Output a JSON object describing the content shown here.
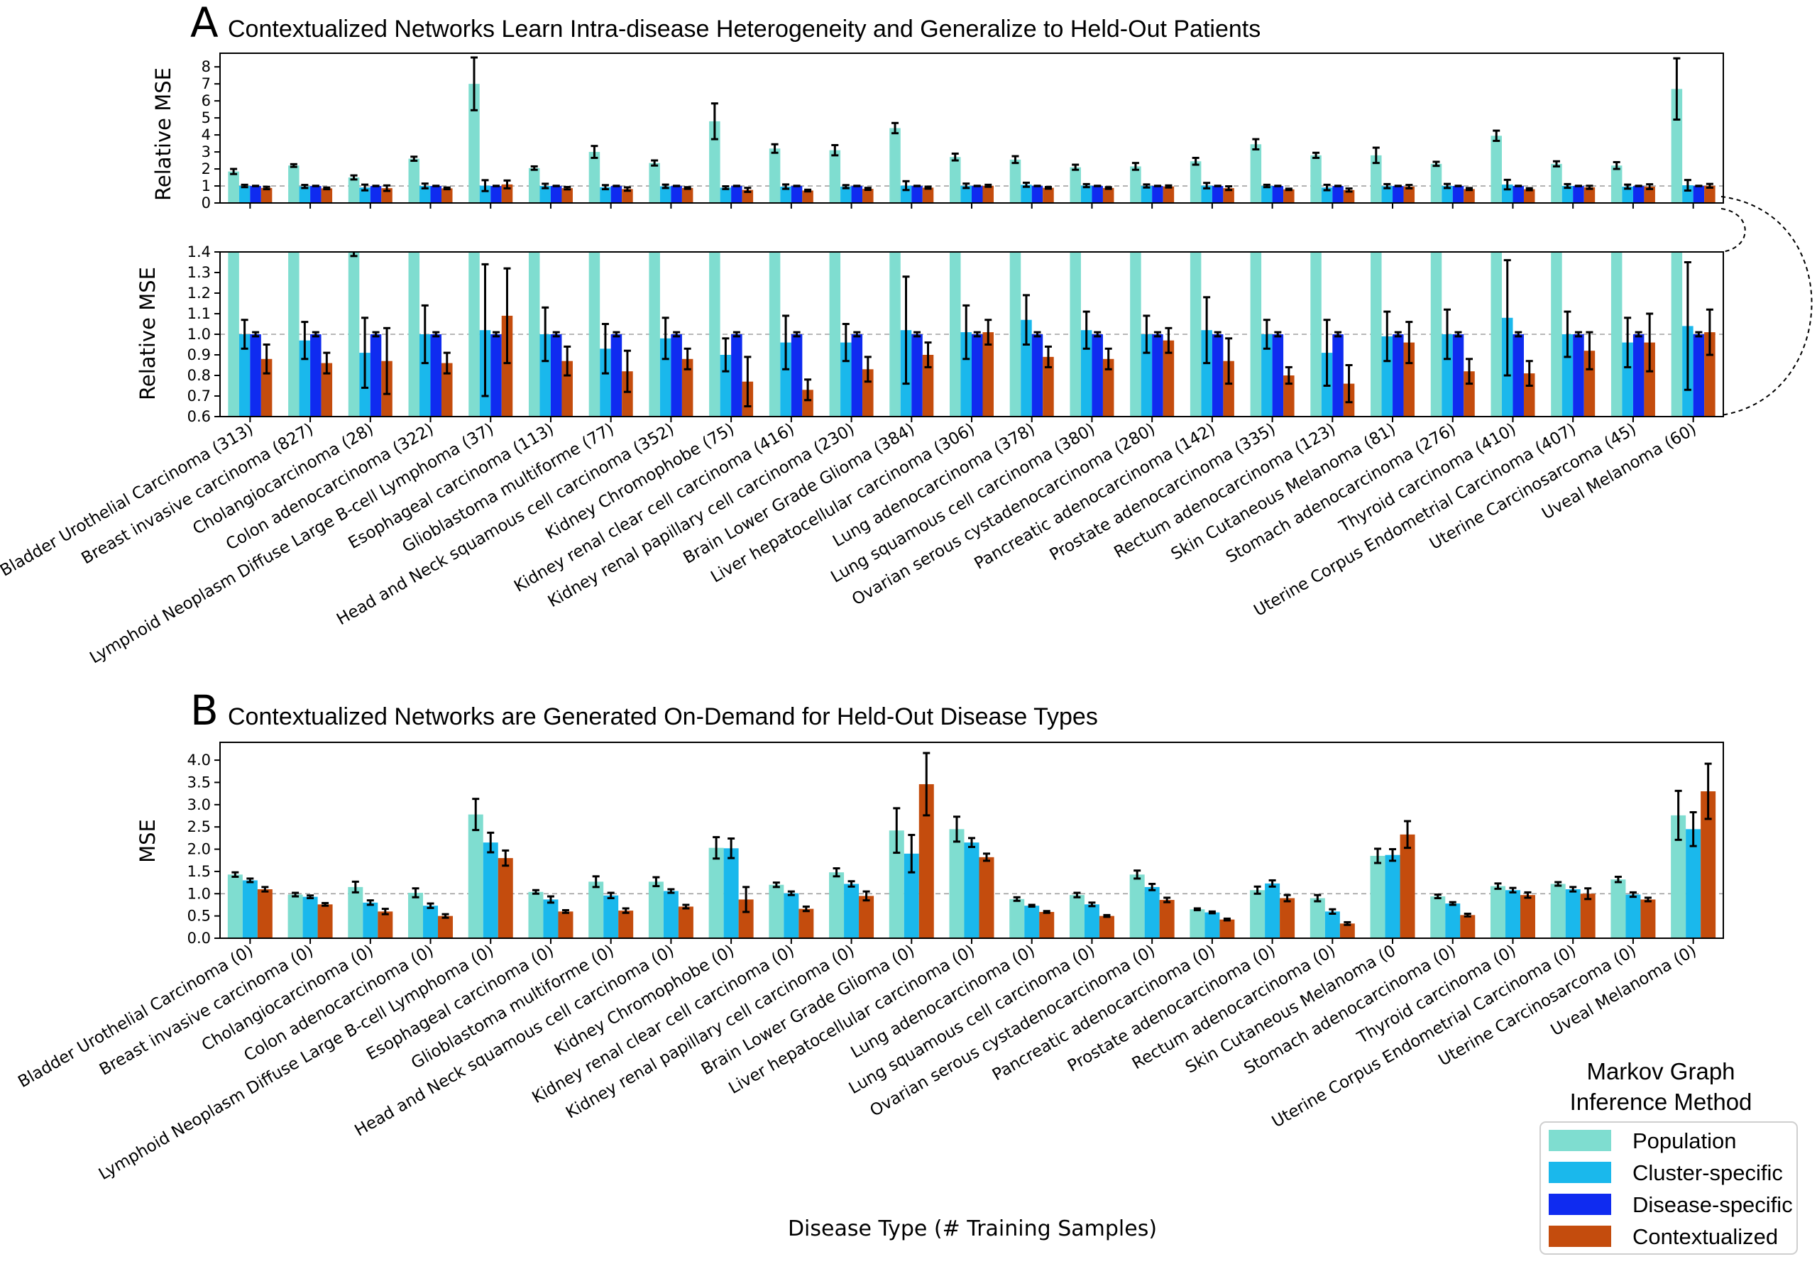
{
  "colors": {
    "Population": "#7fddd0",
    "Cluster-specific": "#1ab8ec",
    "Disease-specific": "#0f2bf0",
    "Contextualized": "#c44c0d"
  },
  "panelA": {
    "letter": "A",
    "title": "Contextualized Networks Learn Intra-disease Heterogeneity and Generalize to Held-Out Patients"
  },
  "panelB": {
    "letter": "B",
    "title": "Contextualized Networks are Generated On-Demand for Held-Out Disease Types"
  },
  "xlabel": "Disease Type (# Training Samples)",
  "legend": {
    "title_line1": "Markov Graph",
    "title_line2": "Inference Method",
    "entries": [
      "Population",
      "Cluster-specific",
      "Disease-specific",
      "Contextualized"
    ]
  },
  "chart_data": [
    {
      "id": "A-top",
      "type": "bar",
      "title": "Contextualized Networks Learn Intra-disease Heterogeneity and Generalize to Held-Out Patients",
      "ylabel": "Relative MSE",
      "ylim": [
        0,
        8.8
      ],
      "yticks": [
        0,
        1,
        2,
        3,
        4,
        5,
        6,
        7,
        8
      ],
      "reference_line": 1,
      "series_names": [
        "Population",
        "Cluster-specific",
        "Disease-specific",
        "Contextualized"
      ],
      "values": [
        [
          1.85,
          1.0,
          1.0,
          0.88
        ],
        [
          2.2,
          0.97,
          1.0,
          0.86
        ],
        [
          1.5,
          0.91,
          1.0,
          0.87
        ],
        [
          2.6,
          1.0,
          1.0,
          0.86
        ],
        [
          7.0,
          1.02,
          1.0,
          1.09
        ],
        [
          2.05,
          1.0,
          1.0,
          0.87
        ],
        [
          3.0,
          0.93,
          1.0,
          0.82
        ],
        [
          2.35,
          0.98,
          1.0,
          0.88
        ],
        [
          4.8,
          0.9,
          1.0,
          0.77
        ],
        [
          3.2,
          0.96,
          1.0,
          0.73
        ],
        [
          3.1,
          0.96,
          1.0,
          0.83
        ],
        [
          4.4,
          1.02,
          1.0,
          0.9
        ],
        [
          2.7,
          1.01,
          1.0,
          1.01
        ],
        [
          2.55,
          1.07,
          1.0,
          0.89
        ],
        [
          2.1,
          1.02,
          1.0,
          0.88
        ],
        [
          2.15,
          1.0,
          1.0,
          0.97
        ],
        [
          2.45,
          1.02,
          1.0,
          0.87
        ],
        [
          3.45,
          1.0,
          1.0,
          0.8
        ],
        [
          2.8,
          0.91,
          1.0,
          0.76
        ],
        [
          2.8,
          0.99,
          1.0,
          0.96
        ],
        [
          2.3,
          1.0,
          1.0,
          0.82
        ],
        [
          3.95,
          1.08,
          1.0,
          0.81
        ],
        [
          2.3,
          1.0,
          1.0,
          0.92
        ],
        [
          2.2,
          0.96,
          1.0,
          0.96
        ],
        [
          6.7,
          1.04,
          1.0,
          1.01
        ]
      ],
      "errors": [
        [
          0.15,
          0.07,
          0.01,
          0.07
        ],
        [
          0.08,
          0.09,
          0.01,
          0.05
        ],
        [
          0.12,
          0.17,
          0.01,
          0.16
        ],
        [
          0.12,
          0.14,
          0.01,
          0.05
        ],
        [
          1.55,
          0.32,
          0.01,
          0.23
        ],
        [
          0.1,
          0.13,
          0.01,
          0.07
        ],
        [
          0.35,
          0.12,
          0.01,
          0.1
        ],
        [
          0.15,
          0.1,
          0.01,
          0.05
        ],
        [
          1.05,
          0.08,
          0.01,
          0.12
        ],
        [
          0.25,
          0.13,
          0.01,
          0.05
        ],
        [
          0.3,
          0.09,
          0.01,
          0.06
        ],
        [
          0.3,
          0.26,
          0.01,
          0.06
        ],
        [
          0.2,
          0.13,
          0.01,
          0.06
        ],
        [
          0.2,
          0.12,
          0.01,
          0.05
        ],
        [
          0.15,
          0.09,
          0.01,
          0.05
        ],
        [
          0.2,
          0.09,
          0.01,
          0.06
        ],
        [
          0.2,
          0.16,
          0.01,
          0.11
        ],
        [
          0.3,
          0.07,
          0.01,
          0.04
        ],
        [
          0.15,
          0.16,
          0.01,
          0.09
        ],
        [
          0.45,
          0.12,
          0.01,
          0.1
        ],
        [
          0.12,
          0.12,
          0.01,
          0.06
        ],
        [
          0.3,
          0.28,
          0.01,
          0.06
        ],
        [
          0.15,
          0.11,
          0.01,
          0.09
        ],
        [
          0.2,
          0.12,
          0.01,
          0.14
        ],
        [
          1.8,
          0.31,
          0.01,
          0.11
        ]
      ]
    },
    {
      "id": "A-bottom",
      "type": "bar",
      "ylabel": "Relative MSE",
      "ylim": [
        0.6,
        1.4
      ],
      "yticks": [
        0.6,
        0.7,
        0.8,
        0.9,
        1.0,
        1.1,
        1.2,
        1.3,
        1.4
      ],
      "ytick_labels": [
        "0.6",
        "0.7",
        "0.8",
        "0.9",
        "1.0",
        "1.1",
        "1.2",
        "1.3",
        "1.4"
      ],
      "reference_line": 1,
      "note": "Zoomed view (0.6 to 1.4) of the same data as the top panel",
      "categories": [
        "Bladder Urothelial Carcinoma (313)",
        "Breast invasive carcinoma (827)",
        "Cholangiocarcinoma (28)",
        "Colon adenocarcinoma (322)",
        "Lymphoid Neoplasm Diffuse Large B-cell Lymphoma (37)",
        "Esophageal carcinoma (113)",
        "Glioblastoma multiforme (77)",
        "Head and Neck squamous cell carcinoma (352)",
        "Kidney Chromophobe (75)",
        "Kidney renal clear cell carcinoma (416)",
        "Kidney renal papillary cell carcinoma (230)",
        "Brain Lower Grade Glioma (384)",
        "Liver hepatocellular carcinoma (306)",
        "Lung adenocarcinoma (378)",
        "Lung squamous cell carcinoma (380)",
        "Ovarian serous cystadenocarcinoma (280)",
        "Pancreatic adenocarcinoma (142)",
        "Prostate adenocarcinoma (335)",
        "Rectum adenocarcinoma (123)",
        "Skin Cutaneous Melanoma (81)",
        "Stomach adenocarcinoma (276)",
        "Thyroid carcinoma (410)",
        "Uterine Corpus Endometrial Carcinoma (407)",
        "Uterine Carcinosarcoma (45)",
        "Uveal Melanoma (60)"
      ]
    },
    {
      "id": "B",
      "type": "bar",
      "title": "Contextualized Networks are Generated On-Demand for Held-Out Disease Types",
      "ylabel": "MSE",
      "xlabel": "Disease Type (# Training Samples)",
      "ylim": [
        0,
        4.4
      ],
      "yticks": [
        0,
        0.5,
        1.0,
        1.5,
        2.0,
        2.5,
        3.0,
        3.5,
        4.0
      ],
      "ytick_labels": [
        "0.0",
        "0.5",
        "1.0",
        "1.5",
        "2.0",
        "2.5",
        "3.0",
        "3.5",
        "4.0"
      ],
      "reference_line": 1,
      "series_names": [
        "Population",
        "Cluster-specific",
        "Contextualized"
      ],
      "categories": [
        "Bladder Urothelial Carcinoma (0)",
        "Breast invasive carcinoma (0)",
        "Cholangiocarcinoma (0)",
        "Colon adenocarcinoma (0)",
        "Lymphoid Neoplasm Diffuse Large B-cell Lymphoma (0)",
        "Esophageal carcinoma (0)",
        "Glioblastoma multiforme (0)",
        "Head and Neck squamous cell carcinoma (0)",
        "Kidney Chromophobe (0)",
        "Kidney renal clear cell carcinoma (0)",
        "Kidney renal papillary cell carcinoma (0)",
        "Brain Lower Grade Glioma (0)",
        "Liver hepatocellular carcinoma (0)",
        "Lung adenocarcinoma (0)",
        "Lung squamous cell carcinoma (0)",
        "Ovarian serous cystadenocarcinoma (0)",
        "Pancreatic adenocarcinoma (0)",
        "Prostate adenocarcinoma (0)",
        "Rectum adenocarcinoma (0)",
        "Skin Cutaneous Melanoma (0",
        "Stomach adenocarcinoma (0)",
        "Thyroid carcinoma (0)",
        "Uterine Corpus Endometrial Carcinoma (0)",
        "Uterine Carcinosarcoma (0)",
        "Uveal Melanoma (0)"
      ],
      "values": [
        [
          1.43,
          1.3,
          1.1
        ],
        [
          0.98,
          0.93,
          0.76
        ],
        [
          1.15,
          0.8,
          0.6
        ],
        [
          1.02,
          0.73,
          0.5
        ],
        [
          2.78,
          2.15,
          1.8
        ],
        [
          1.04,
          0.87,
          0.6
        ],
        [
          1.27,
          0.96,
          0.62
        ],
        [
          1.27,
          1.06,
          0.71
        ],
        [
          2.03,
          2.02,
          0.87
        ],
        [
          1.2,
          1.01,
          0.66
        ],
        [
          1.48,
          1.22,
          0.95
        ],
        [
          2.42,
          1.9,
          3.46
        ],
        [
          2.45,
          2.15,
          1.82
        ],
        [
          0.88,
          0.73,
          0.59
        ],
        [
          0.97,
          0.76,
          0.5
        ],
        [
          1.43,
          1.15,
          0.86
        ],
        [
          0.65,
          0.58,
          0.42
        ],
        [
          1.08,
          1.23,
          0.9
        ],
        [
          0.9,
          0.6,
          0.33
        ],
        [
          1.85,
          1.87,
          2.33
        ],
        [
          0.94,
          0.78,
          0.52
        ],
        [
          1.17,
          1.08,
          0.97
        ],
        [
          1.22,
          1.1,
          1.0
        ],
        [
          1.32,
          0.98,
          0.87
        ],
        [
          2.76,
          2.45,
          3.3
        ]
      ],
      "errors": [
        [
          0.05,
          0.04,
          0.05
        ],
        [
          0.04,
          0.03,
          0.03
        ],
        [
          0.12,
          0.05,
          0.06
        ],
        [
          0.1,
          0.05,
          0.04
        ],
        [
          0.35,
          0.22,
          0.17
        ],
        [
          0.04,
          0.07,
          0.03
        ],
        [
          0.12,
          0.06,
          0.05
        ],
        [
          0.1,
          0.04,
          0.04
        ],
        [
          0.24,
          0.22,
          0.28
        ],
        [
          0.05,
          0.04,
          0.05
        ],
        [
          0.09,
          0.06,
          0.1
        ],
        [
          0.5,
          0.42,
          0.7
        ],
        [
          0.28,
          0.1,
          0.08
        ],
        [
          0.04,
          0.02,
          0.02
        ],
        [
          0.05,
          0.04,
          0.02
        ],
        [
          0.09,
          0.07,
          0.05
        ],
        [
          0.02,
          0.02,
          0.02
        ],
        [
          0.08,
          0.07,
          0.07
        ],
        [
          0.07,
          0.05,
          0.03
        ],
        [
          0.16,
          0.13,
          0.3
        ],
        [
          0.04,
          0.03,
          0.03
        ],
        [
          0.06,
          0.05,
          0.06
        ],
        [
          0.04,
          0.05,
          0.12
        ],
        [
          0.06,
          0.05,
          0.04
        ],
        [
          0.55,
          0.38,
          0.62
        ]
      ]
    }
  ]
}
